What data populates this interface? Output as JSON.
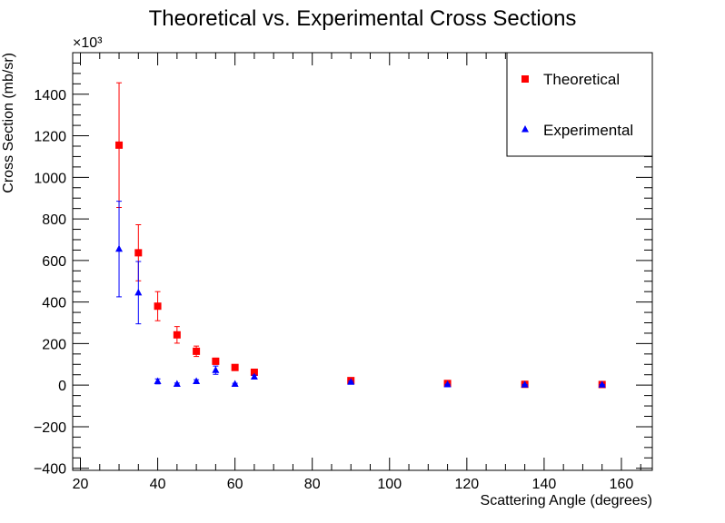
{
  "chart_data": {
    "type": "scatter",
    "title": "Theoretical vs. Experimental Cross Sections",
    "xlabel": "Scattering Angle (degrees)",
    "ylabel": "Cross Section (mb/sr)",
    "y_multiplier_label": "×10³",
    "xlim": [
      18,
      168
    ],
    "ylim": [
      -410,
      1600
    ],
    "x_ticks": [
      20,
      40,
      60,
      80,
      100,
      120,
      140,
      160
    ],
    "x_tick_labels": [
      "20",
      "40",
      "60",
      "80",
      "100",
      "120",
      "140",
      "160"
    ],
    "y_ticks": [
      -400,
      -200,
      0,
      200,
      400,
      600,
      800,
      1000,
      1200,
      1400
    ],
    "y_tick_labels": [
      "−400",
      "−200",
      "0",
      "200",
      "400",
      "600",
      "800",
      "1000",
      "1200",
      "1400"
    ],
    "grid": false,
    "legend_position": "top-right",
    "series": [
      {
        "name": "Theoretical",
        "color": "#ff0000",
        "marker": "square",
        "x": [
          30,
          35,
          40,
          45,
          50,
          55,
          60,
          65,
          90,
          115,
          135,
          155
        ],
        "y": [
          1155,
          637,
          380,
          242,
          163,
          115,
          85,
          62,
          22,
          8,
          4,
          3
        ],
        "err": [
          300,
          135,
          70,
          40,
          25,
          15,
          10,
          8,
          4,
          2,
          1,
          1
        ]
      },
      {
        "name": "Experimental",
        "color": "#0000ff",
        "marker": "triangle",
        "x": [
          30,
          35,
          40,
          45,
          50,
          55,
          60,
          65,
          90,
          115,
          135,
          155
        ],
        "y": [
          655,
          445,
          18,
          5,
          18,
          72,
          5,
          40,
          15,
          3,
          2,
          2
        ],
        "err": [
          230,
          150,
          12,
          5,
          8,
          20,
          4,
          8,
          4,
          1,
          1,
          1
        ]
      }
    ]
  }
}
